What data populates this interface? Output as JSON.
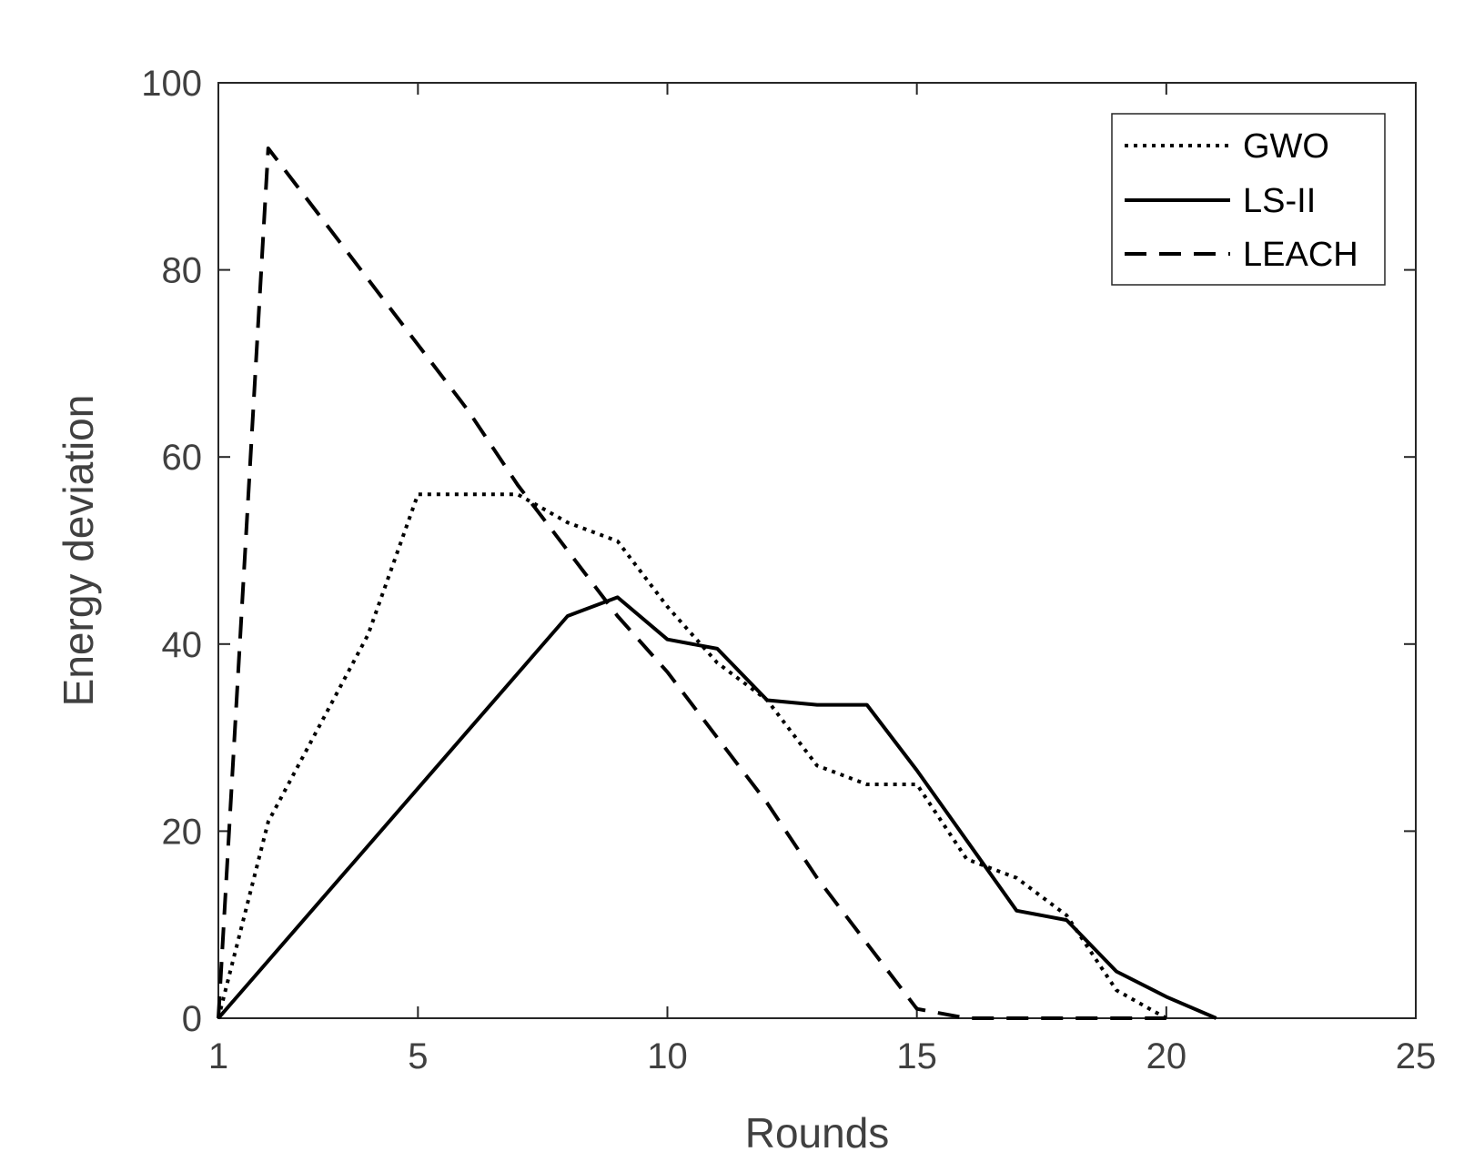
{
  "chart_data": {
    "type": "line",
    "xlabel": "Rounds",
    "ylabel": "Energy deviation",
    "xlim": [
      1,
      25
    ],
    "ylim": [
      0,
      100
    ],
    "xticks": [
      1,
      5,
      10,
      15,
      20,
      25
    ],
    "yticks": [
      0,
      20,
      40,
      60,
      80,
      100
    ],
    "grid": false,
    "legend_position": "top-right",
    "series": [
      {
        "name": "GWO",
        "style": "dotted",
        "color": "#000000",
        "x": [
          1,
          2,
          3,
          4,
          5,
          6,
          7,
          8,
          9,
          10,
          11,
          12,
          13,
          14,
          15,
          16,
          17,
          18,
          19,
          20
        ],
        "y": [
          0,
          21,
          31,
          41,
          56,
          56,
          56,
          53,
          51,
          44,
          38,
          34,
          27,
          25,
          25,
          17,
          15,
          11,
          3,
          0
        ]
      },
      {
        "name": "LS-II",
        "style": "solid",
        "color": "#000000",
        "x": [
          1,
          8,
          9,
          10,
          11,
          12,
          13,
          14,
          15,
          16,
          17,
          18,
          19,
          20,
          21
        ],
        "y": [
          0,
          43,
          45,
          40.5,
          39.5,
          34,
          33.5,
          33.5,
          26.5,
          19,
          11.5,
          10.5,
          5,
          2.3,
          0
        ]
      },
      {
        "name": "LEACH",
        "style": "dashed",
        "color": "#000000",
        "x": [
          1,
          2,
          3,
          4,
          5,
          6,
          7,
          8,
          9,
          10,
          11,
          12,
          13,
          14,
          15,
          16,
          17,
          18,
          19,
          20
        ],
        "y": [
          0,
          93,
          86,
          79,
          72,
          65,
          57,
          50,
          43,
          37,
          30,
          23,
          15,
          8,
          1,
          0,
          0,
          0,
          0,
          0
        ]
      }
    ]
  }
}
